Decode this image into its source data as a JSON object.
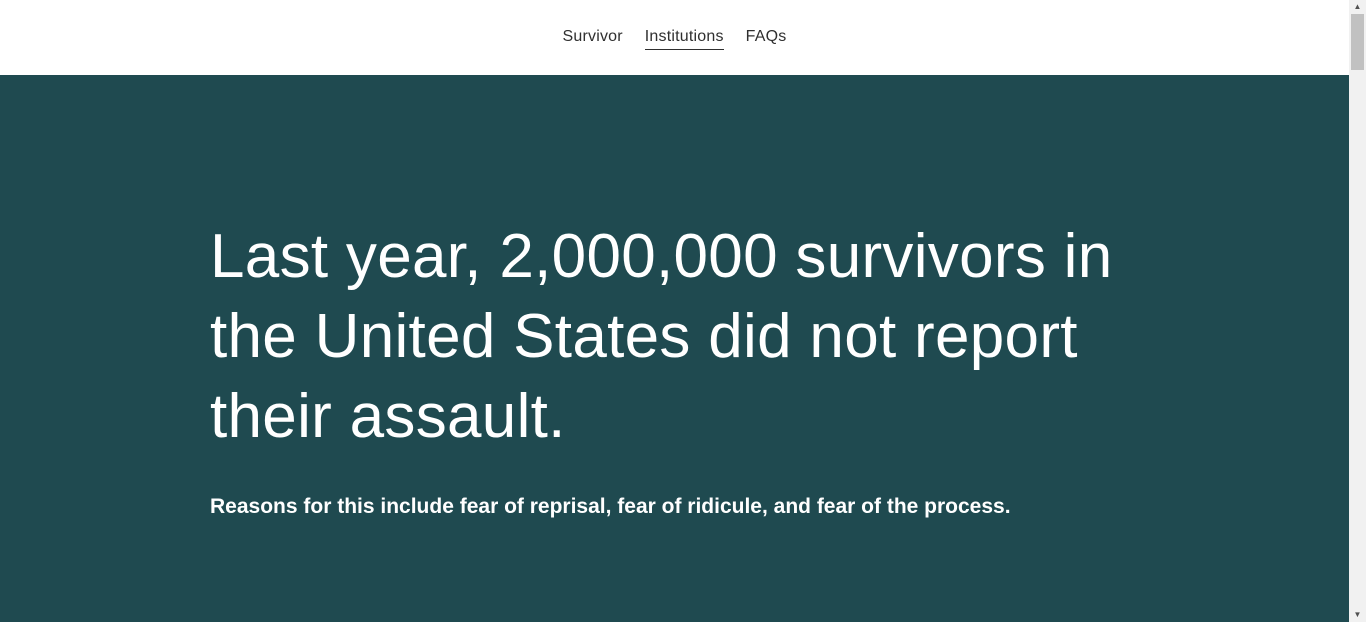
{
  "header": {
    "logo": "",
    "nav": [
      {
        "label": "Survivor",
        "active": false
      },
      {
        "label": "Institutions",
        "active": true
      },
      {
        "label": "FAQs",
        "active": false
      }
    ]
  },
  "hero": {
    "headline": "Last year, 2,000,000 survivors in the United States did not report their assault.",
    "subhead": "Reasons for this include fear of reprisal, fear of ridicule, and fear of the process.",
    "background_color": "#1f4a50"
  },
  "scrollbar": {
    "up_arrow": "▲",
    "down_arrow": "▼"
  }
}
